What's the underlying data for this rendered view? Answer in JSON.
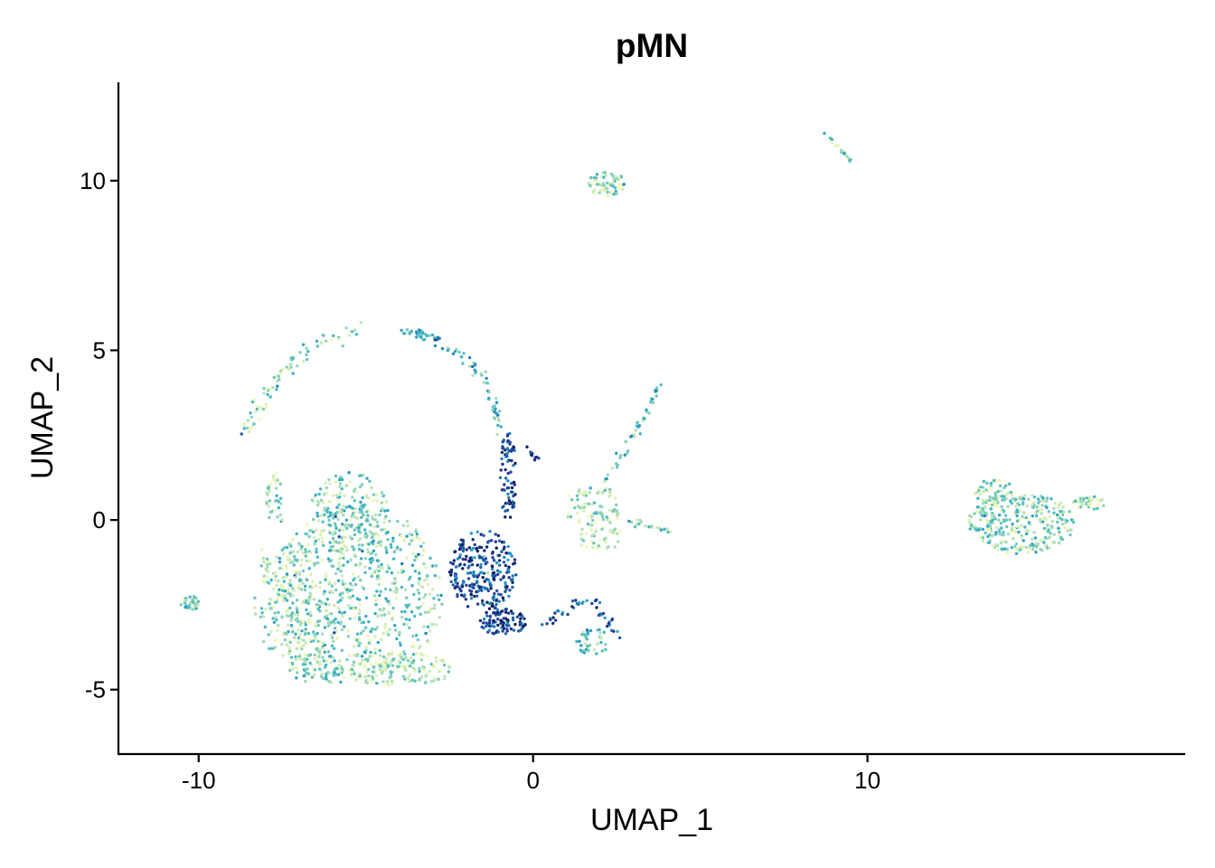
{
  "chart_data": {
    "type": "scatter",
    "title": "pMN",
    "xlabel": "UMAP_1",
    "ylabel": "UMAP_2",
    "xlim": [
      -12.4,
      19.5
    ],
    "ylim": [
      -6.9,
      12.9
    ],
    "xticks": [
      -10,
      0,
      10
    ],
    "xtick_labels": [
      "-10",
      "0",
      "10"
    ],
    "yticks": [
      -5,
      0,
      5,
      10
    ],
    "ytick_labels": [
      "-5",
      "0",
      "5",
      "10"
    ],
    "grid": false,
    "legend": "none",
    "colormap": [
      "#ffffd9",
      "#edf8b1",
      "#c7e9b4",
      "#7fcdbb",
      "#41b6c4",
      "#1d91c0",
      "#225ea8",
      "#253494",
      "#081d58"
    ],
    "clusters": [
      {
        "shape": "ellipse",
        "cx": -5.3,
        "cy": -2.2,
        "rx": 2.6,
        "ry": 2.7,
        "n": 720,
        "level": 0.35
      },
      {
        "shape": "ellipse",
        "cx": -7.2,
        "cy": -2.5,
        "rx": 1.2,
        "ry": 1.8,
        "n": 170,
        "level": 0.3
      },
      {
        "shape": "ellipse",
        "cx": -5.5,
        "cy": 0.2,
        "rx": 1.2,
        "ry": 1.2,
        "n": 160,
        "level": 0.35
      },
      {
        "shape": "ellipse",
        "cx": -4.0,
        "cy": -4.4,
        "rx": 1.6,
        "ry": 0.5,
        "n": 160,
        "level": 0.25
      },
      {
        "shape": "ellipse",
        "cx": -6.5,
        "cy": -4.4,
        "rx": 0.8,
        "ry": 0.4,
        "n": 60,
        "level": 0.35
      },
      {
        "shape": "ellipse",
        "cx": -7.7,
        "cy": 0.6,
        "rx": 0.3,
        "ry": 0.8,
        "n": 40,
        "level": 0.3
      },
      {
        "shape": "ellipse",
        "cx": -10.2,
        "cy": -2.45,
        "rx": 0.35,
        "ry": 0.2,
        "n": 40,
        "level": 0.35
      },
      {
        "shape": "ellipse",
        "cx": -1.5,
        "cy": -1.5,
        "rx": 1.0,
        "ry": 1.2,
        "n": 250,
        "level": 0.8
      },
      {
        "shape": "ellipse",
        "cx": -0.9,
        "cy": -3.0,
        "rx": 0.7,
        "ry": 0.4,
        "n": 90,
        "level": 0.85
      },
      {
        "shape": "ellipse",
        "cx": -0.75,
        "cy": 1.3,
        "rx": 0.25,
        "ry": 1.3,
        "n": 80,
        "level": 0.85
      },
      {
        "shape": "ellipse",
        "cx": 1.8,
        "cy": 0.4,
        "rx": 0.9,
        "ry": 0.6,
        "n": 90,
        "level": 0.25
      },
      {
        "shape": "ellipse",
        "cx": 2.0,
        "cy": -0.5,
        "rx": 0.7,
        "ry": 0.4,
        "n": 40,
        "level": 0.2
      },
      {
        "shape": "ellipse",
        "cx": 2.2,
        "cy": 9.9,
        "rx": 0.6,
        "ry": 0.35,
        "n": 70,
        "level": 0.3
      },
      {
        "shape": "ellipse",
        "cx": 14.6,
        "cy": -0.1,
        "rx": 1.6,
        "ry": 0.9,
        "n": 320,
        "level": 0.35
      },
      {
        "shape": "ellipse",
        "cx": 13.8,
        "cy": 0.8,
        "rx": 0.6,
        "ry": 0.4,
        "n": 60,
        "level": 0.3
      },
      {
        "shape": "ellipse",
        "cx": 16.6,
        "cy": 0.5,
        "rx": 0.5,
        "ry": 0.2,
        "n": 40,
        "level": 0.3
      },
      {
        "shape": "ellipse",
        "cx": 1.8,
        "cy": -3.6,
        "rx": 0.5,
        "ry": 0.4,
        "n": 40,
        "level": 0.4
      },
      {
        "shape": "path",
        "points": [
          [
            -8.7,
            2.4
          ],
          [
            -8.0,
            3.6
          ],
          [
            -7.2,
            4.6
          ],
          [
            -6.3,
            5.3
          ],
          [
            -5.2,
            5.6
          ]
        ],
        "n": 80,
        "width": 0.22,
        "level": 0.3
      },
      {
        "shape": "path",
        "points": [
          [
            -4.0,
            5.6
          ],
          [
            -3.0,
            5.4
          ],
          [
            -2.0,
            4.8
          ],
          [
            -1.3,
            3.8
          ],
          [
            -0.9,
            2.5
          ]
        ],
        "n": 90,
        "width": 0.15,
        "level": 0.5
      },
      {
        "shape": "path",
        "points": [
          [
            2.1,
            1.1
          ],
          [
            2.9,
            2.2
          ],
          [
            3.5,
            3.4
          ],
          [
            3.8,
            4.0
          ]
        ],
        "n": 45,
        "width": 0.12,
        "level": 0.45
      },
      {
        "shape": "path",
        "points": [
          [
            2.8,
            0.0
          ],
          [
            3.5,
            -0.2
          ],
          [
            4.1,
            -0.3
          ]
        ],
        "n": 22,
        "width": 0.1,
        "level": 0.4
      },
      {
        "shape": "path",
        "points": [
          [
            0.3,
            -3.1
          ],
          [
            1.1,
            -2.6
          ],
          [
            1.9,
            -2.3
          ],
          [
            2.0,
            -2.8
          ],
          [
            2.6,
            -3.4
          ]
        ],
        "n": 45,
        "width": 0.12,
        "level": 0.75
      },
      {
        "shape": "path",
        "points": [
          [
            8.7,
            11.4
          ],
          [
            9.2,
            10.9
          ],
          [
            9.5,
            10.6
          ]
        ],
        "n": 22,
        "width": 0.06,
        "level": 0.35
      },
      {
        "shape": "path",
        "points": [
          [
            -0.2,
            2.1
          ],
          [
            0.2,
            1.7
          ]
        ],
        "n": 10,
        "width": 0.08,
        "level": 0.85
      },
      {
        "shape": "path",
        "points": [
          [
            -8.1,
            -0.8
          ],
          [
            -8.0,
            -1.8
          ]
        ],
        "n": 12,
        "width": 0.15,
        "level": 0.3
      }
    ]
  }
}
